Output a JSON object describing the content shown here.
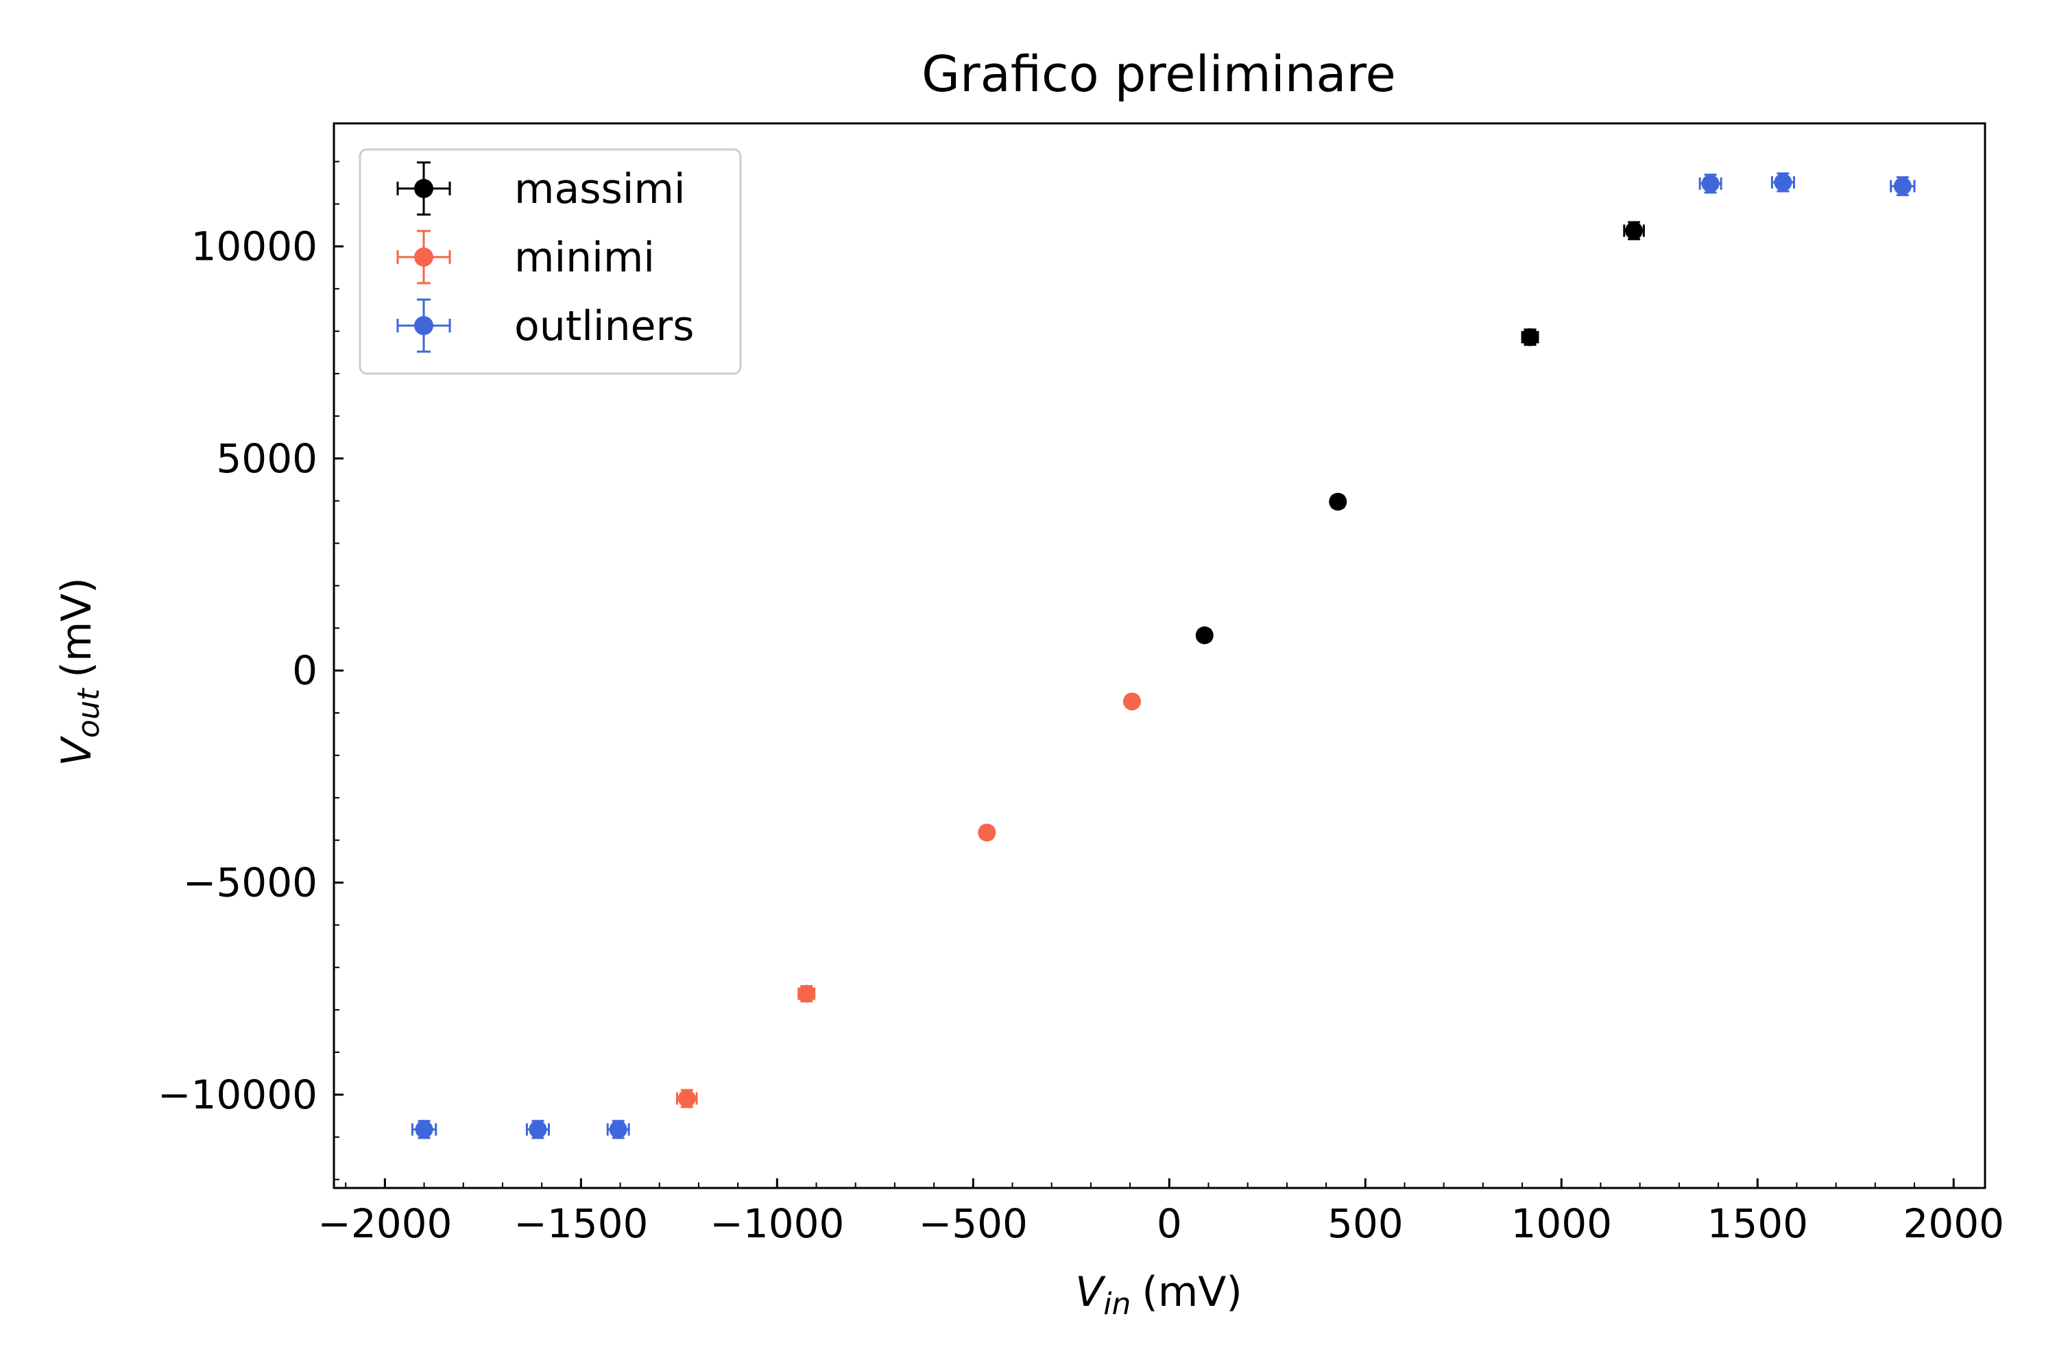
{
  "chart_data": {
    "type": "scatter",
    "title": "Grafico preliminare",
    "xlabel": {
      "var": "V",
      "sub": "in",
      "unit": "(mV)"
    },
    "ylabel": {
      "var": "V",
      "sub": "out",
      "unit": "(mV)"
    },
    "xlim": [
      -2130,
      2080
    ],
    "ylim": [
      -12200,
      12900
    ],
    "xticks": [
      -2000,
      -1500,
      -1000,
      -500,
      0,
      500,
      1000,
      1500,
      2000
    ],
    "xtick_labels": [
      "−2000",
      "−1500",
      "−1000",
      "−500",
      "0",
      "500",
      "1000",
      "1500",
      "2000"
    ],
    "yticks": [
      -10000,
      -5000,
      0,
      5000,
      10000
    ],
    "ytick_labels": [
      "−10000",
      "−5000",
      "0",
      "5000",
      "10000"
    ],
    "grid": false,
    "legend_position": "top-left",
    "series": [
      {
        "name": "massimi",
        "color": "#000000",
        "points": [
          {
            "x": 90,
            "y": 830,
            "xerr": 15,
            "yerr": 120
          },
          {
            "x": 430,
            "y": 3980,
            "xerr": 15,
            "yerr": 140
          },
          {
            "x": 920,
            "y": 7860,
            "xerr": 20,
            "yerr": 180
          },
          {
            "x": 1185,
            "y": 10370,
            "xerr": 25,
            "yerr": 200
          }
        ]
      },
      {
        "name": "minimi",
        "color": "#f7664a",
        "points": [
          {
            "x": -95,
            "y": -730,
            "xerr": 15,
            "yerr": 120
          },
          {
            "x": -465,
            "y": -3820,
            "xerr": 15,
            "yerr": 140
          },
          {
            "x": -925,
            "y": -7620,
            "xerr": 20,
            "yerr": 180
          },
          {
            "x": -1230,
            "y": -10090,
            "xerr": 25,
            "yerr": 200
          }
        ]
      },
      {
        "name": "outliners",
        "color": "#3f66da",
        "points": [
          {
            "x": -1900,
            "y": -10820,
            "xerr": 30,
            "yerr": 200
          },
          {
            "x": -1610,
            "y": -10820,
            "xerr": 28,
            "yerr": 200
          },
          {
            "x": -1405,
            "y": -10820,
            "xerr": 27,
            "yerr": 200
          },
          {
            "x": 1380,
            "y": 11480,
            "xerr": 27,
            "yerr": 210
          },
          {
            "x": 1565,
            "y": 11510,
            "xerr": 28,
            "yerr": 210
          },
          {
            "x": 1870,
            "y": 11420,
            "xerr": 30,
            "yerr": 210
          }
        ]
      }
    ]
  }
}
